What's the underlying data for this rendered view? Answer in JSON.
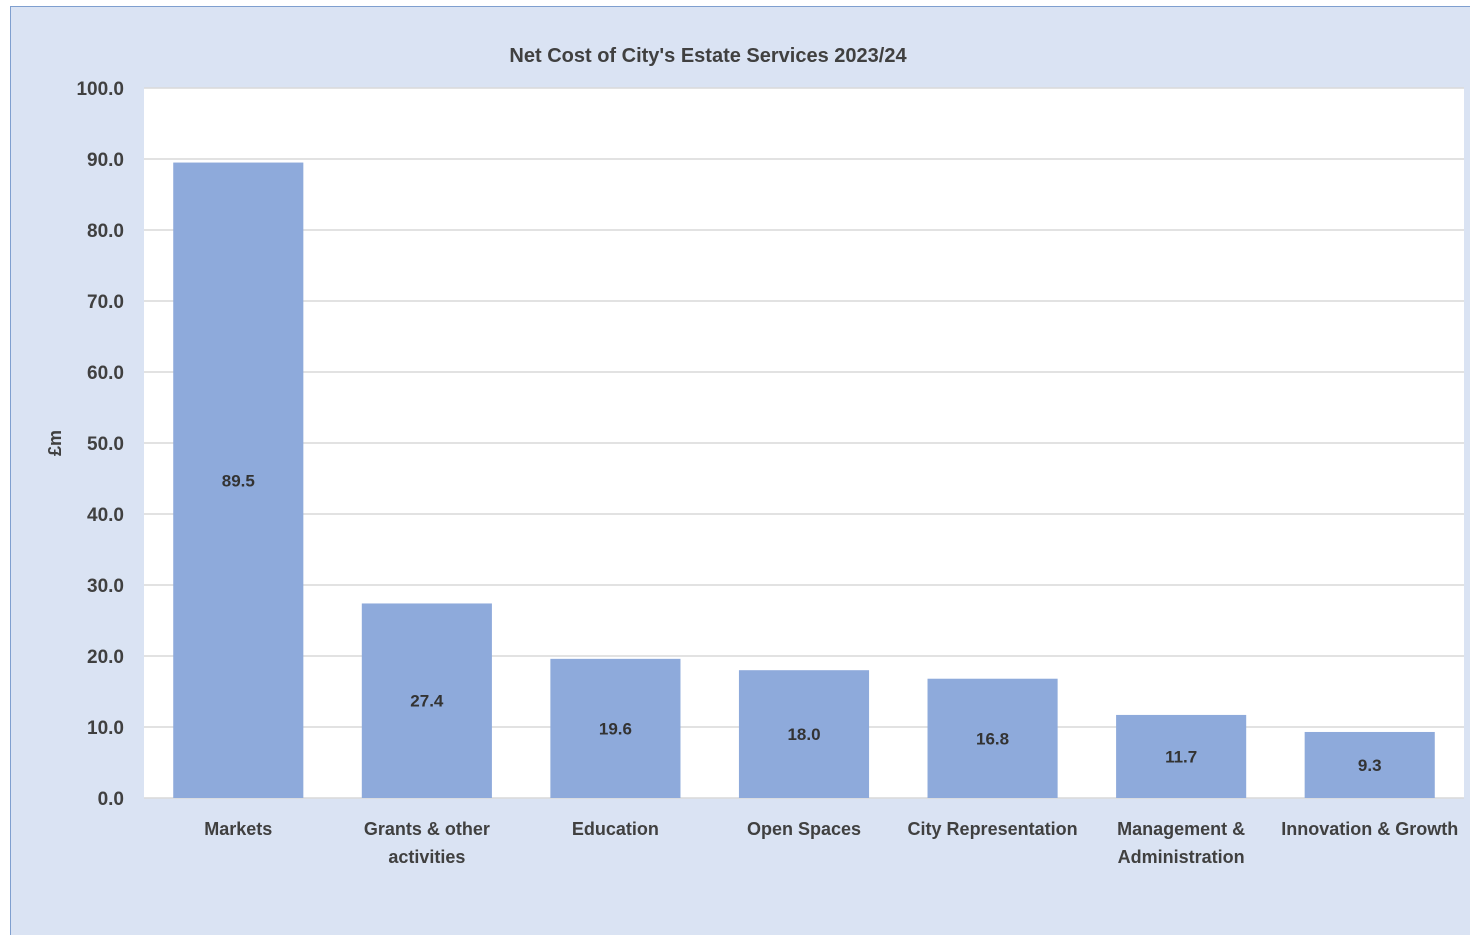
{
  "chart_data": {
    "type": "bar",
    "title": "Net Cost of City's Estate Services 2023/24",
    "xlabel": "",
    "ylabel": "£m",
    "ylim": [
      0,
      100
    ],
    "y_ticks": [
      "0.0",
      "10.0",
      "20.0",
      "30.0",
      "40.0",
      "50.0",
      "60.0",
      "70.0",
      "80.0",
      "90.0",
      "100.0"
    ],
    "grid": true,
    "legend": "none",
    "categories": [
      [
        "Markets"
      ],
      [
        "Grants & other",
        "activities"
      ],
      [
        "Education"
      ],
      [
        "Open Spaces"
      ],
      [
        "City Representation"
      ],
      [
        "Management &",
        "Administration"
      ],
      [
        "Innovation & Growth"
      ]
    ],
    "values": [
      89.5,
      27.4,
      19.6,
      18.0,
      16.8,
      11.7,
      9.3
    ],
    "value_labels": [
      "89.5",
      "27.4",
      "19.6",
      "18.0",
      "16.8",
      "11.7",
      "9.3"
    ],
    "colors": {
      "bar": "#8eaadb",
      "background": "#dae3f3",
      "plot_area": "#ffffff",
      "gridline": "#d9d9d9"
    }
  }
}
